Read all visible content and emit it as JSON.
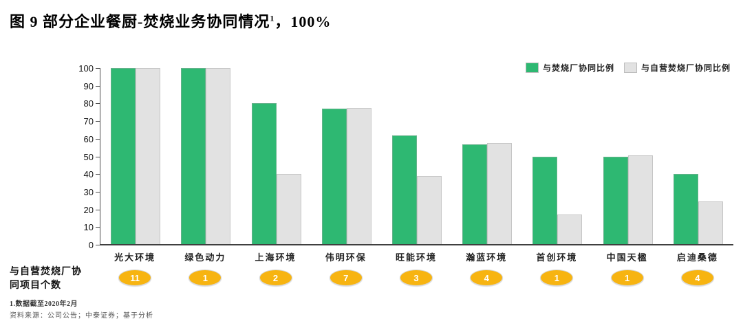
{
  "title": {
    "text": "图 9 部分企业餐厨-焚烧业务协同情况",
    "superscript": "1",
    "suffix": "，100%"
  },
  "chart_data": {
    "type": "bar",
    "categories": [
      "光大环境",
      "绿色动力",
      "上海环境",
      "伟明环保",
      "旺能环境",
      "瀚蓝环境",
      "首创环境",
      "中国天楹",
      "启迪桑德"
    ],
    "series": [
      {
        "name": "与焚烧厂协同比例",
        "color": "#2eb872",
        "values": [
          100,
          100,
          80,
          77,
          62,
          57,
          50,
          50,
          40
        ]
      },
      {
        "name": "与自营焚烧厂协同比例",
        "color": "#e2e2e2",
        "values": [
          100,
          100,
          40,
          77.5,
          39,
          57.5,
          17,
          50.5,
          24.5
        ]
      }
    ],
    "ylim": [
      0,
      100
    ],
    "yticks": [
      0,
      10,
      20,
      30,
      40,
      50,
      60,
      70,
      80,
      90,
      100
    ],
    "grid": "off",
    "legend_position": "top-right",
    "badges": {
      "caption_line1": "与自营焚烧厂协",
      "caption_line2": "同项目个数",
      "values": [
        11,
        1,
        2,
        7,
        3,
        4,
        1,
        1,
        4
      ]
    }
  },
  "colors": {
    "green_bar": "#2eb872",
    "gray_bar": "#e2e2e2",
    "badge": "#f7b411",
    "axis": "#3f3f3f"
  },
  "footnotes": {
    "note1": "1.数据截至2020年2月",
    "source": "资料来源：公司公告；中泰证券；基于分析"
  }
}
